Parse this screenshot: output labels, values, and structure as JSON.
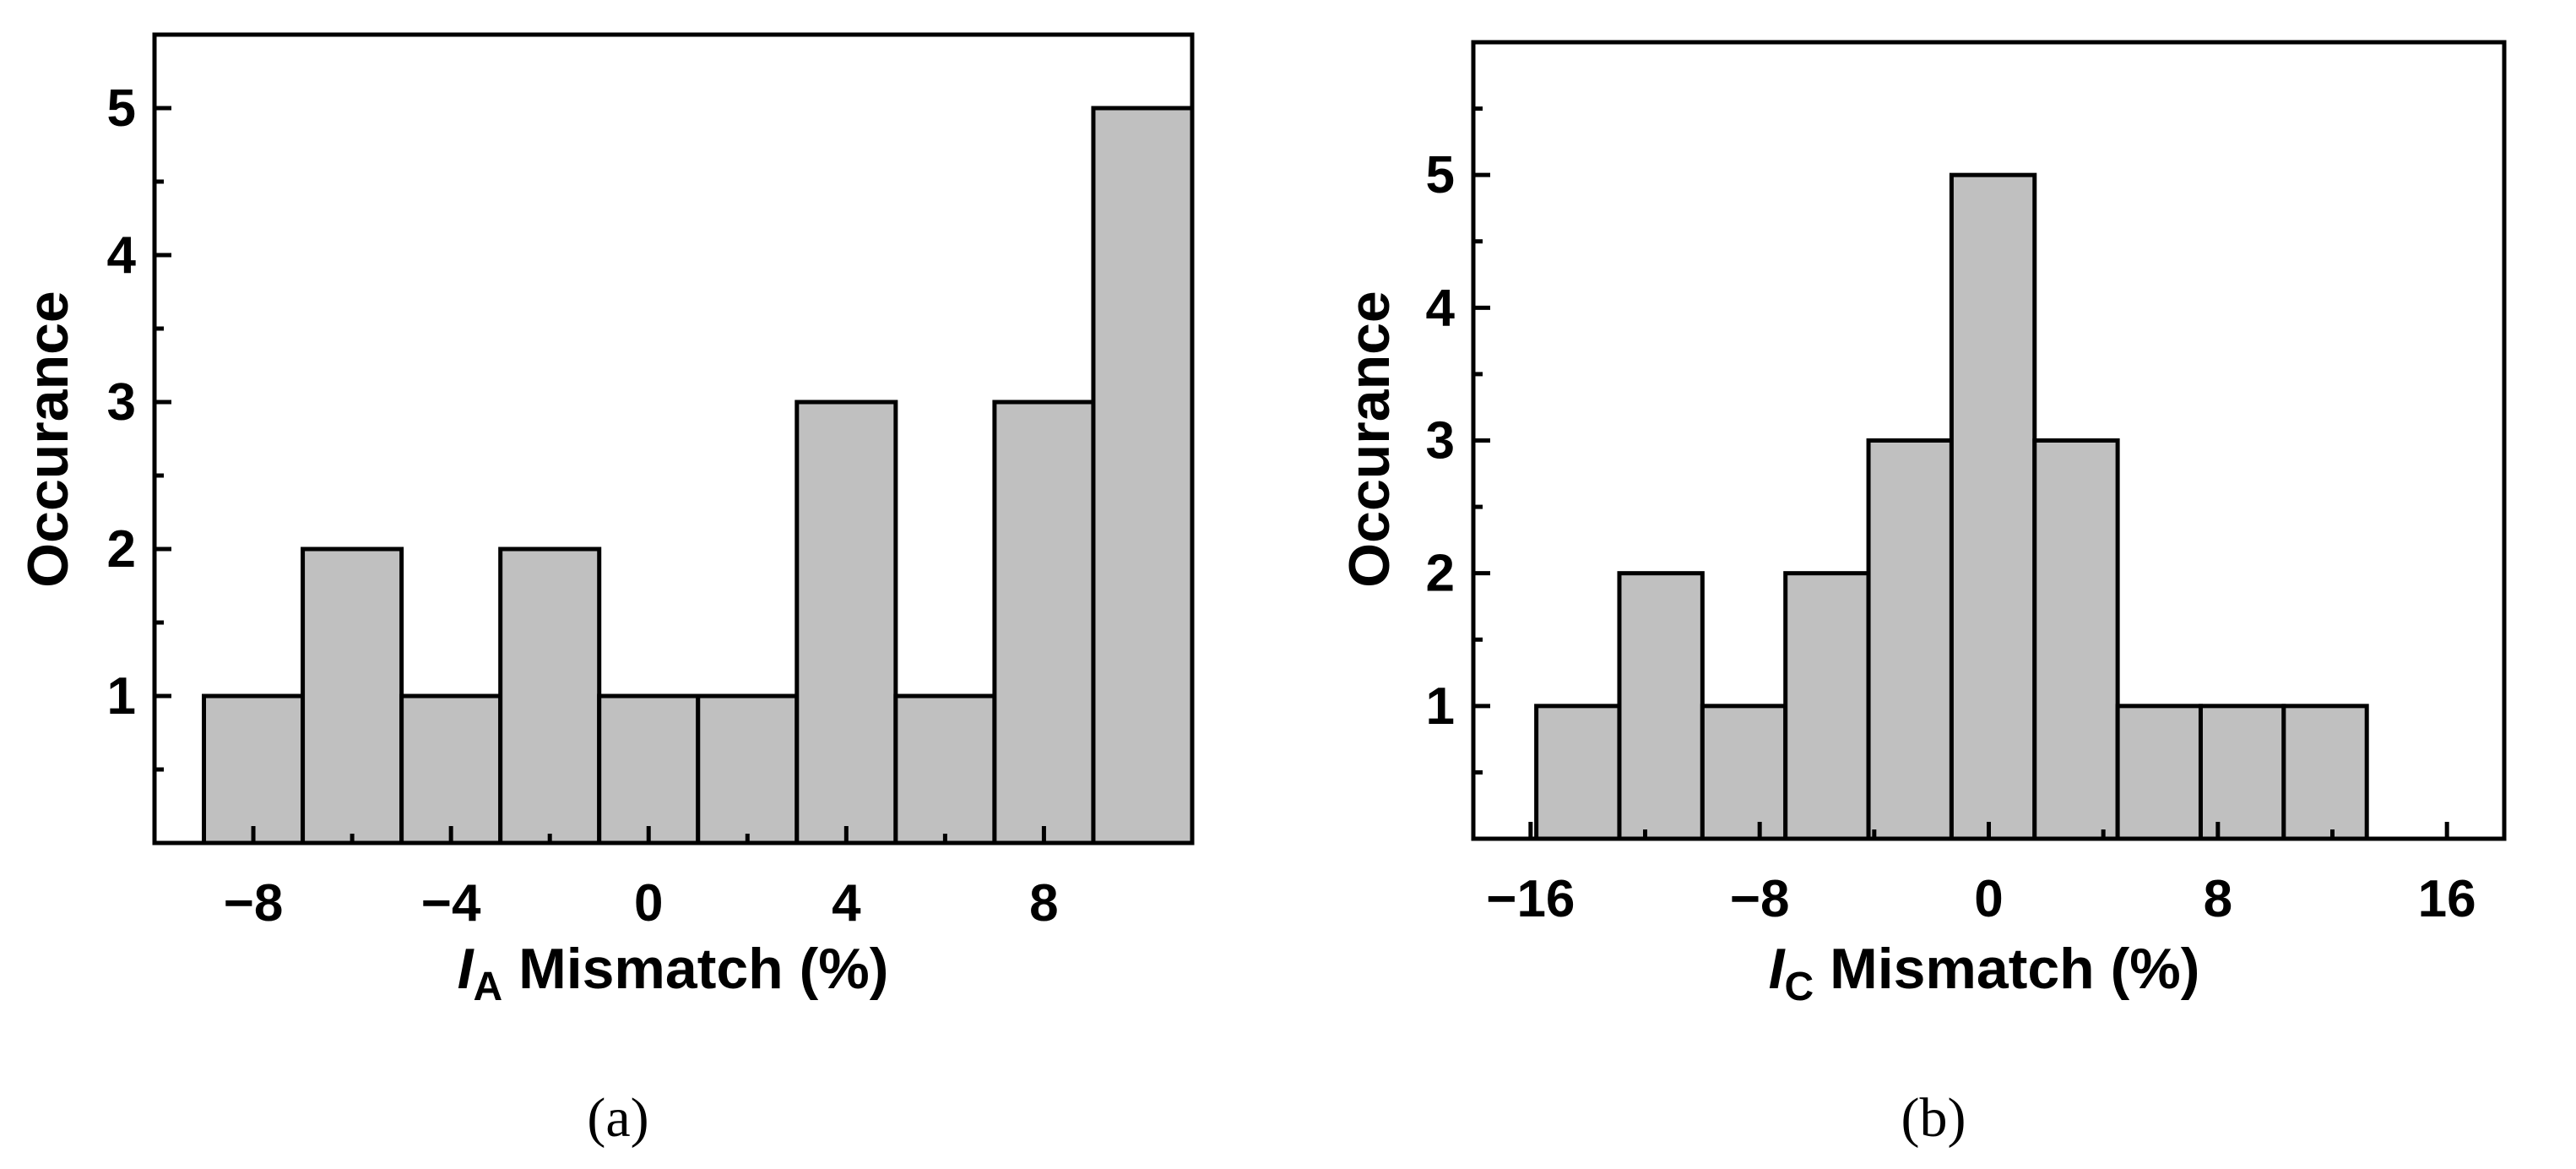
{
  "chart_data": [
    {
      "type": "bar",
      "panel_label": "(a)",
      "ylabel": "Occurance",
      "xlabel": {
        "var": "I",
        "sub": "A",
        "rest": " Mismatch (%)"
      },
      "xlim": [
        -10,
        11
      ],
      "ylim": [
        0,
        5.5
      ],
      "xticks": [
        -8,
        -4,
        0,
        4,
        8
      ],
      "xtick_labels": [
        "−8",
        "−4",
        "0",
        "4",
        "8"
      ],
      "yticks": [
        1,
        2,
        3,
        4,
        5
      ],
      "bin_edges": [
        -9,
        -7,
        -5,
        -3,
        -1,
        1,
        3,
        5,
        7,
        9,
        11
      ],
      "values": [
        1,
        2,
        1,
        2,
        1,
        1,
        3,
        1,
        3,
        5
      ]
    },
    {
      "type": "bar",
      "panel_label": "(b)",
      "ylabel": "Occurance",
      "xlabel": {
        "var": "I",
        "sub": "C",
        "rest": " Mismatch (%)"
      },
      "xlim": [
        -18,
        18
      ],
      "ylim": [
        0,
        6
      ],
      "xticks": [
        -16,
        -8,
        0,
        8,
        16
      ],
      "xtick_labels": [
        "−16",
        "−8",
        "0",
        "8",
        "16"
      ],
      "yticks": [
        1,
        2,
        3,
        4,
        5
      ],
      "bin_edges": [
        -15.8,
        -12.9,
        -10.0,
        -7.1,
        -4.2,
        -1.3,
        1.6,
        4.5,
        7.4,
        10.3,
        13.2
      ],
      "values": [
        1,
        2,
        1,
        2,
        3,
        5,
        3,
        1,
        1,
        1
      ]
    }
  ]
}
